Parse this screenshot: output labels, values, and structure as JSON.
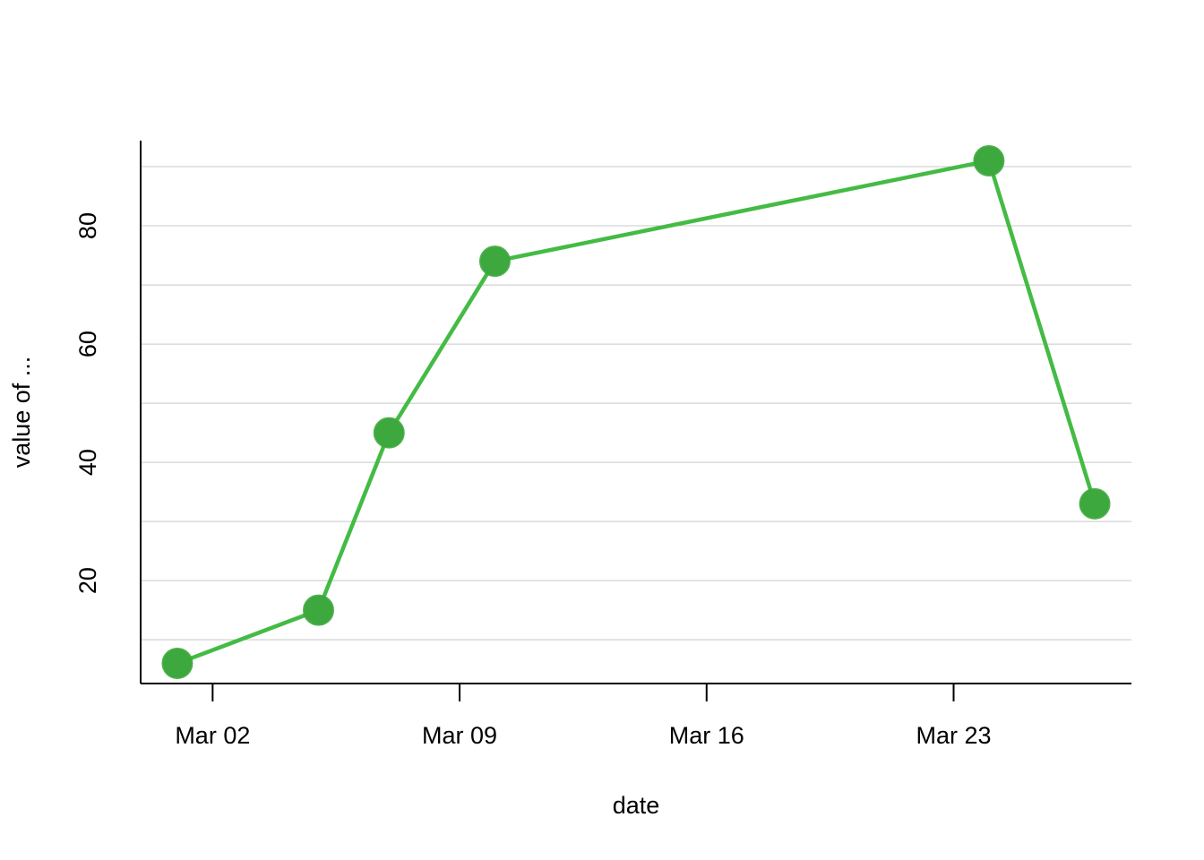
{
  "chart_data": {
    "type": "line",
    "x_label": "date",
    "y_label": "value of ...",
    "x": [
      "Mar 01",
      "Mar 05",
      "Mar 07",
      "Mar 10",
      "Mar 24",
      "Mar 27"
    ],
    "series": [
      {
        "color": "#44bb44",
        "values": [
          6,
          15,
          45,
          74,
          91,
          33
        ]
      }
    ],
    "xticks": [
      "Mar 02",
      "Mar 09",
      "Mar 16",
      "Mar 23"
    ],
    "ylim": [
      2.6,
      94.4
    ],
    "yticks": [
      20,
      40,
      60,
      80
    ],
    "ygrid": [
      10,
      20,
      30,
      40,
      50,
      60,
      70,
      80,
      90
    ],
    "grid": true
  }
}
